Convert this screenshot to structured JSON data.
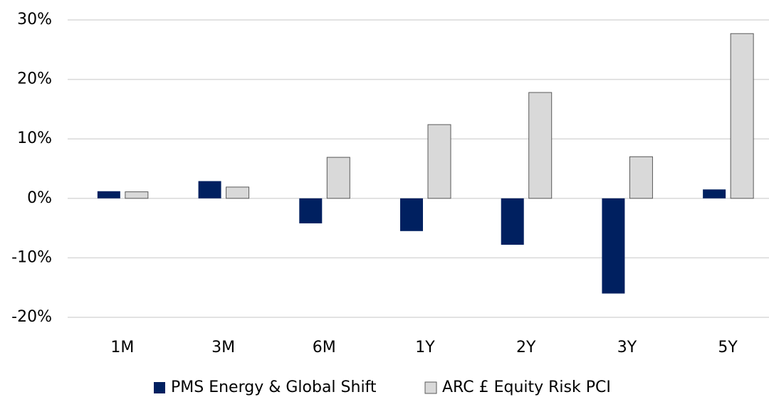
{
  "chart_data": {
    "type": "bar",
    "categories": [
      "1M",
      "3M",
      "6M",
      "1Y",
      "2Y",
      "3Y",
      "5Y"
    ],
    "series": [
      {
        "name": "PMS Energy & Global Shift",
        "color": "#002060",
        "values": [
          1.2,
          2.9,
          -4.2,
          -5.5,
          -7.8,
          -16.0,
          1.5
        ]
      },
      {
        "name": "ARC £ Equity Risk PCI",
        "color": "#d9d9d9",
        "values": [
          1.1,
          1.9,
          6.9,
          12.4,
          17.8,
          7.0,
          27.7
        ]
      }
    ],
    "ylim": [
      -20,
      30
    ],
    "yticks": [
      {
        "value": -20,
        "label": "-20%"
      },
      {
        "value": -10,
        "label": "-10%"
      },
      {
        "value": 0,
        "label": "0%"
      },
      {
        "value": 10,
        "label": "10%"
      },
      {
        "value": 20,
        "label": "20%"
      },
      {
        "value": 30,
        "label": "30%"
      }
    ],
    "grid": true,
    "legend": "bottom"
  }
}
